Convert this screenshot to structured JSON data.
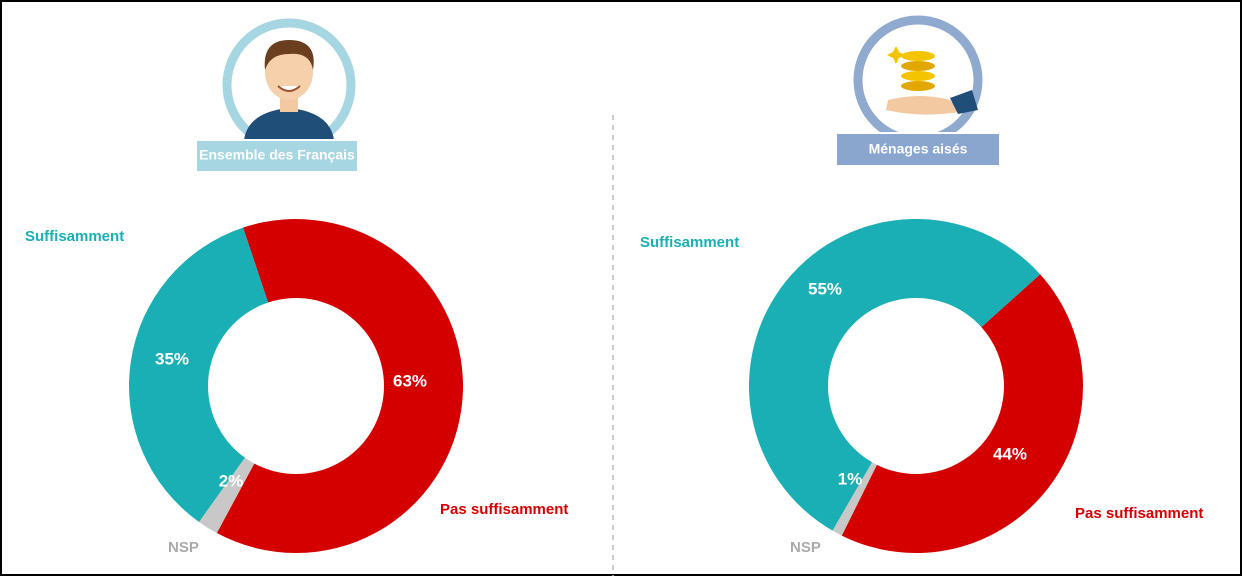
{
  "chart_data": [
    {
      "type": "donut",
      "title": "Ensemble des Français",
      "categories": [
        "Pas suffisamment",
        "NSP",
        "Suffisamment"
      ],
      "values": [
        63,
        2,
        35
      ],
      "value_labels": [
        "63%",
        "2%",
        "35%"
      ],
      "colors": [
        "#d40000",
        "#c8c8c8",
        "#1aafb4"
      ]
    },
    {
      "type": "donut",
      "title": "Ménages aisés",
      "categories": [
        "Pas suffisamment",
        "NSP",
        "Suffisamment"
      ],
      "values": [
        44,
        1,
        55
      ],
      "value_labels": [
        "44%",
        "1%",
        "55%"
      ],
      "colors": [
        "#d40000",
        "#c8c8c8",
        "#1aafb4"
      ]
    }
  ]
}
